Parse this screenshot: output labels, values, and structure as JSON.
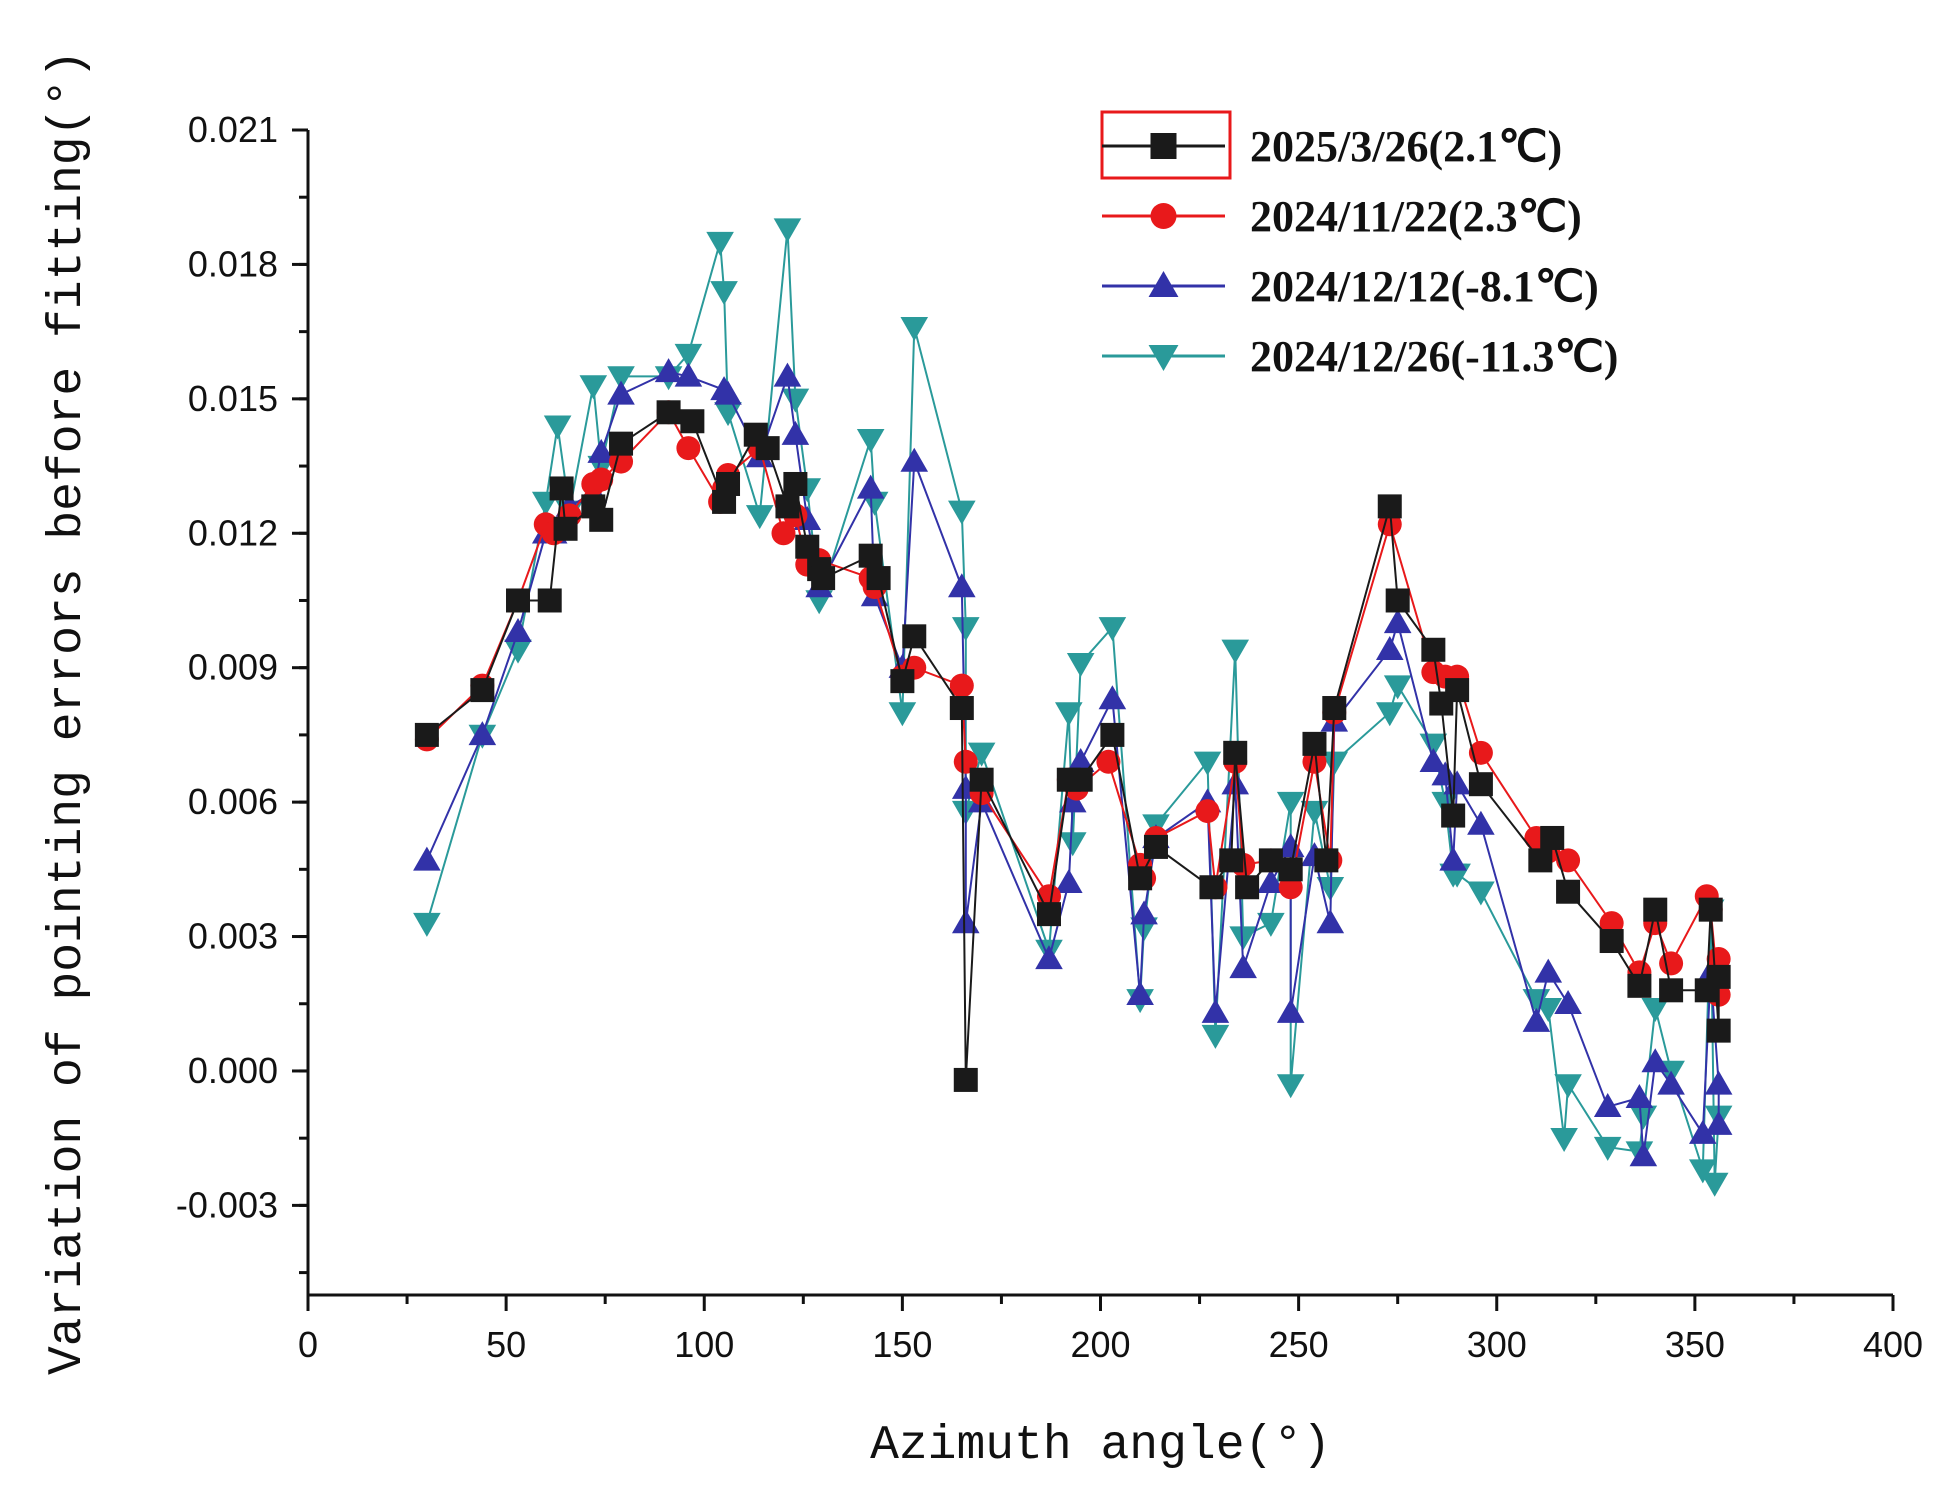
{
  "chart_data": {
    "type": "line",
    "title": "",
    "xlabel": "Azimuth angle(°)",
    "ylabel": "Variation of pointing errors before fitting(°)",
    "xlim": [
      0,
      400
    ],
    "ylim": [
      -0.005,
      0.021
    ],
    "x_ticks": [
      0,
      50,
      100,
      150,
      200,
      250,
      300,
      350,
      400
    ],
    "x_tick_labels": [
      "0",
      "50",
      "100",
      "150",
      "200",
      "250",
      "300",
      "350",
      "400"
    ],
    "y_ticks": [
      -0.003,
      0.0,
      0.003,
      0.006,
      0.009,
      0.012,
      0.015,
      0.018,
      0.021
    ],
    "y_tick_labels": [
      "-0.003",
      "0.000",
      "0.003",
      "0.006",
      "0.009",
      "0.012",
      "0.015",
      "0.018",
      "0.021"
    ],
    "grid": false,
    "legend_position": "top-right",
    "series": [
      {
        "name": "2025/3/26(2.1℃)",
        "color": "#1a1a1a",
        "marker": "square",
        "points": [
          [
            30,
            0.0075
          ],
          [
            44,
            0.0085
          ],
          [
            53,
            0.0105
          ],
          [
            61,
            0.0105
          ],
          [
            64,
            0.013
          ],
          [
            65,
            0.0121
          ],
          [
            72,
            0.0126
          ],
          [
            74,
            0.0123
          ],
          [
            79,
            0.014
          ],
          [
            91,
            0.0147
          ],
          [
            97,
            0.0145
          ],
          [
            105,
            0.0127
          ],
          [
            106,
            0.0131
          ],
          [
            113,
            0.0142
          ],
          [
            116,
            0.0139
          ],
          [
            121,
            0.0126
          ],
          [
            123,
            0.0131
          ],
          [
            126,
            0.0117
          ],
          [
            129,
            0.0112
          ],
          [
            130,
            0.011
          ],
          [
            142,
            0.0115
          ],
          [
            144,
            0.011
          ],
          [
            150,
            0.0087
          ],
          [
            153,
            0.0097
          ],
          [
            165,
            0.0081
          ],
          [
            166,
            -0.0002
          ],
          [
            170,
            0.0065
          ],
          [
            187,
            0.0035
          ],
          [
            192,
            0.0065
          ],
          [
            195,
            0.0065
          ],
          [
            203,
            0.0075
          ],
          [
            210,
            0.0043
          ],
          [
            214,
            0.005
          ],
          [
            228,
            0.0041
          ],
          [
            233,
            0.0047
          ],
          [
            234,
            0.0071
          ],
          [
            237,
            0.0041
          ],
          [
            243,
            0.0047
          ],
          [
            248,
            0.0045
          ],
          [
            254,
            0.0073
          ],
          [
            257,
            0.0047
          ],
          [
            259,
            0.0081
          ],
          [
            273,
            0.0126
          ],
          [
            275,
            0.0105
          ],
          [
            284,
            0.0094
          ],
          [
            286,
            0.0082
          ],
          [
            289,
            0.0057
          ],
          [
            290,
            0.0085
          ],
          [
            296,
            0.0064
          ],
          [
            311,
            0.0047
          ],
          [
            314,
            0.0052
          ],
          [
            318,
            0.004
          ],
          [
            329,
            0.0029
          ],
          [
            336,
            0.0019
          ],
          [
            340,
            0.0036
          ],
          [
            344,
            0.0018
          ],
          [
            353,
            0.0018
          ],
          [
            354,
            0.0036
          ],
          [
            356,
            0.0009
          ],
          [
            356,
            0.0021
          ]
        ]
      },
      {
        "name": "2024/11/22(2.3℃)",
        "color": "#e8191b",
        "marker": "circle",
        "points": [
          [
            30,
            0.0074
          ],
          [
            44,
            0.0086
          ],
          [
            53,
            0.0105
          ],
          [
            60,
            0.0122
          ],
          [
            62,
            0.012
          ],
          [
            66,
            0.0124
          ],
          [
            72,
            0.0131
          ],
          [
            74,
            0.0132
          ],
          [
            79,
            0.0136
          ],
          [
            91,
            0.0147
          ],
          [
            96,
            0.0139
          ],
          [
            104,
            0.0127
          ],
          [
            105,
            0.013
          ],
          [
            106,
            0.0133
          ],
          [
            114,
            0.0139
          ],
          [
            120,
            0.012
          ],
          [
            123,
            0.0124
          ],
          [
            126,
            0.0113
          ],
          [
            129,
            0.0114
          ],
          [
            142,
            0.011
          ],
          [
            143,
            0.0108
          ],
          [
            150,
            0.0088
          ],
          [
            153,
            0.009
          ],
          [
            165,
            0.0086
          ],
          [
            166,
            0.0069
          ],
          [
            170,
            0.0062
          ],
          [
            187,
            0.0039
          ],
          [
            192,
            0.0065
          ],
          [
            194,
            0.0063
          ],
          [
            202,
            0.0069
          ],
          [
            210,
            0.0046
          ],
          [
            211,
            0.0043
          ],
          [
            214,
            0.0052
          ],
          [
            227,
            0.0058
          ],
          [
            229,
            0.0041
          ],
          [
            234,
            0.0069
          ],
          [
            236,
            0.0046
          ],
          [
            243,
            0.0047
          ],
          [
            248,
            0.0041
          ],
          [
            254,
            0.0069
          ],
          [
            258,
            0.0047
          ],
          [
            259,
            0.008
          ],
          [
            273,
            0.0122
          ],
          [
            284,
            0.0089
          ],
          [
            287,
            0.0088
          ],
          [
            290,
            0.0088
          ],
          [
            296,
            0.0071
          ],
          [
            310,
            0.0052
          ],
          [
            313,
            0.0049
          ],
          [
            318,
            0.0047
          ],
          [
            329,
            0.0033
          ],
          [
            336,
            0.0022
          ],
          [
            340,
            0.0033
          ],
          [
            344,
            0.0024
          ],
          [
            353,
            0.0039
          ],
          [
            354,
            0.0036
          ],
          [
            356,
            0.0017
          ],
          [
            356,
            0.0025
          ]
        ]
      },
      {
        "name": "2024/12/12(-8.1℃)",
        "color": "#3232a8",
        "marker": "triangle-up",
        "points": [
          [
            30,
            0.0047
          ],
          [
            44,
            0.0075
          ],
          [
            53,
            0.0098
          ],
          [
            60,
            0.012
          ],
          [
            62,
            0.012
          ],
          [
            66,
            0.0126
          ],
          [
            72,
            0.0129
          ],
          [
            74,
            0.0138
          ],
          [
            79,
            0.0151
          ],
          [
            91,
            0.0156
          ],
          [
            96,
            0.0155
          ],
          [
            105,
            0.0152
          ],
          [
            106,
            0.0151
          ],
          [
            114,
            0.0137
          ],
          [
            121,
            0.0155
          ],
          [
            123,
            0.0142
          ],
          [
            126,
            0.0123
          ],
          [
            129,
            0.0108
          ],
          [
            142,
            0.013
          ],
          [
            143,
            0.0106
          ],
          [
            150,
            0.009
          ],
          [
            153,
            0.0136
          ],
          [
            165,
            0.0108
          ],
          [
            166,
            0.0063
          ],
          [
            166,
            0.0033
          ],
          [
            170,
            0.006
          ],
          [
            187,
            0.0025
          ],
          [
            192,
            0.0042
          ],
          [
            193,
            0.006
          ],
          [
            195,
            0.0069
          ],
          [
            203,
            0.0083
          ],
          [
            210,
            0.0017
          ],
          [
            211,
            0.0035
          ],
          [
            214,
            0.0052
          ],
          [
            227,
            0.006
          ],
          [
            229,
            0.0013
          ],
          [
            234,
            0.0064
          ],
          [
            236,
            0.0023
          ],
          [
            243,
            0.0042
          ],
          [
            248,
            0.005
          ],
          [
            248,
            0.0013
          ],
          [
            254,
            0.0048
          ],
          [
            258,
            0.0033
          ],
          [
            259,
            0.0078
          ],
          [
            273,
            0.0094
          ],
          [
            275,
            0.01
          ],
          [
            284,
            0.0069
          ],
          [
            287,
            0.0066
          ],
          [
            289,
            0.0047
          ],
          [
            290,
            0.0064
          ],
          [
            296,
            0.0055
          ],
          [
            310,
            0.0011
          ],
          [
            313,
            0.0022
          ],
          [
            318,
            0.0015
          ],
          [
            328,
            -0.0008
          ],
          [
            336,
            -0.0006
          ],
          [
            337,
            -0.0019
          ],
          [
            340,
            0.0002
          ],
          [
            344,
            -0.0003
          ],
          [
            352,
            -0.0014
          ],
          [
            354,
            0.0022
          ],
          [
            356,
            -0.0003
          ],
          [
            356,
            -0.0012
          ]
        ]
      },
      {
        "name": "2024/12/26(-11.3℃)",
        "color": "#2a9a9a",
        "marker": "triangle-down",
        "points": [
          [
            30,
            0.0033
          ],
          [
            44,
            0.0075
          ],
          [
            53,
            0.0094
          ],
          [
            60,
            0.0127
          ],
          [
            63,
            0.0144
          ],
          [
            66,
            0.0125
          ],
          [
            72,
            0.0153
          ],
          [
            74,
            0.0135
          ],
          [
            79,
            0.0155
          ],
          [
            91,
            0.0155
          ],
          [
            96,
            0.016
          ],
          [
            104,
            0.0185
          ],
          [
            105,
            0.0174
          ],
          [
            106,
            0.0147
          ],
          [
            114,
            0.0124
          ],
          [
            121,
            0.0188
          ],
          [
            123,
            0.015
          ],
          [
            126,
            0.013
          ],
          [
            129,
            0.0105
          ],
          [
            142,
            0.0141
          ],
          [
            143,
            0.0127
          ],
          [
            150,
            0.008
          ],
          [
            153,
            0.0166
          ],
          [
            165,
            0.0125
          ],
          [
            166,
            0.0099
          ],
          [
            166,
            0.0058
          ],
          [
            170,
            0.0071
          ],
          [
            187,
            0.0027
          ],
          [
            192,
            0.008
          ],
          [
            193,
            0.0051
          ],
          [
            195,
            0.0091
          ],
          [
            203,
            0.0099
          ],
          [
            210,
            0.0016
          ],
          [
            211,
            0.0032
          ],
          [
            214,
            0.0055
          ],
          [
            227,
            0.0069
          ],
          [
            229,
            0.0008
          ],
          [
            234,
            0.0094
          ],
          [
            236,
            0.003
          ],
          [
            243,
            0.0033
          ],
          [
            248,
            0.006
          ],
          [
            248,
            -0.0003
          ],
          [
            254,
            0.0058
          ],
          [
            258,
            0.0041
          ],
          [
            259,
            0.0069
          ],
          [
            273,
            0.008
          ],
          [
            275,
            0.0086
          ],
          [
            284,
            0.0073
          ],
          [
            287,
            0.006
          ],
          [
            289,
            0.0044
          ],
          [
            290,
            0.0044
          ],
          [
            296,
            0.004
          ],
          [
            310,
            0.0016
          ],
          [
            313,
            0.0014
          ],
          [
            317,
            -0.0015
          ],
          [
            318,
            -0.0003
          ],
          [
            328,
            -0.0017
          ],
          [
            336,
            -0.0018
          ],
          [
            337,
            -0.001
          ],
          [
            340,
            0.0014
          ],
          [
            344,
            0.0
          ],
          [
            352,
            -0.0022
          ],
          [
            354,
            0.0036
          ],
          [
            355,
            -0.0025
          ],
          [
            356,
            -0.001
          ]
        ]
      }
    ]
  }
}
